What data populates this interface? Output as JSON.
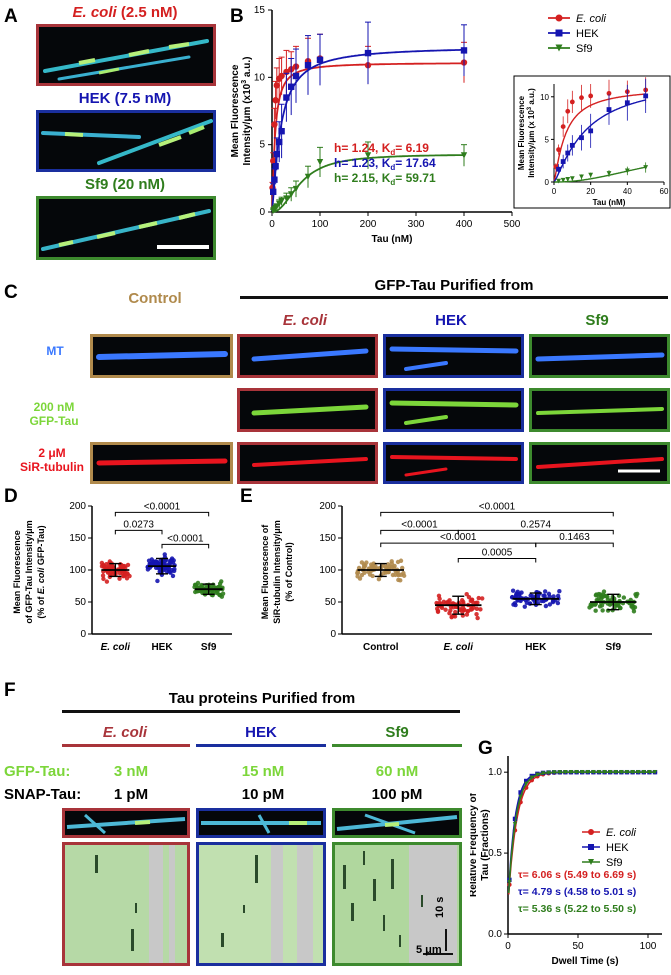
{
  "panel_labels": {
    "a": "A",
    "b": "B",
    "c": "C",
    "d": "D",
    "e": "E",
    "f": "F",
    "g": "G"
  },
  "colors": {
    "ecoli": "#d42020",
    "hek": "#1515b0",
    "sf9": "#2f7d1d",
    "control": "#b08a4c",
    "mt_blue": "#3a78ff",
    "gfp_green": "#7cd63a",
    "sir_red": "#e8141e"
  },
  "panel_a": {
    "ecoli_title": "E. coli",
    "ecoli_conc": " (2.5 nM)",
    "hek_title": "HEK (7.5 nM)",
    "sf9_title": "Sf9 (20 nM)"
  },
  "panel_c": {
    "control_label": "Control",
    "header": "GFP-Tau Purified from",
    "col_ecoli": "E. coli",
    "col_hek": "HEK",
    "col_sf9": "Sf9",
    "row_mt": "MT",
    "row_gfp_1": "200 nM",
    "row_gfp_2": "GFP-Tau",
    "row_sir_1": "2 μM",
    "row_sir_2": "SiR-tubulin"
  },
  "panel_f": {
    "header": "Tau proteins Purified from",
    "col_ecoli": "E. coli",
    "col_hek": "HEK",
    "col_sf9": "Sf9",
    "gfp_label": "GFP-Tau:",
    "gfp_ecoli": "3 nM",
    "gfp_hek": "15 nM",
    "gfp_sf9": "60 nM",
    "snap_label": "SNAP-Tau:",
    "snap_ecoli": "1 pM",
    "snap_hek": "10 pM",
    "snap_sf9": "100 pM",
    "scale_time": "10 s",
    "scale_space": "5 μm"
  },
  "chart_data": [
    {
      "id": "B",
      "type": "scatter",
      "xlabel": "Tau (nM)",
      "ylabel_1": "Mean Fluorescence",
      "ylabel_2": "Intensity/μm (x10",
      "ylabel_sup": "3",
      "ylabel_3": " a.u.)",
      "xlim": [
        0,
        500
      ],
      "ylim": [
        0,
        15
      ],
      "xticks": [
        "0",
        "100",
        "200",
        "300",
        "400",
        "500"
      ],
      "yticks": [
        "0",
        "5",
        "10",
        "15"
      ],
      "legend": [
        "E. coli",
        "HEK",
        "Sf9"
      ],
      "annotations": [
        "h= 1.24, K",
        "h= 1.23, K",
        "h= 2.15, K"
      ],
      "kd_sub": "d",
      "kd_values": [
        "= 6.19",
        "= 17.64",
        "= 59.71"
      ],
      "series": [
        {
          "name": "E. coli",
          "fit": {
            "Bmax": 11.1,
            "Kd": 6.19,
            "h": 1.24
          },
          "x": [
            1,
            2.5,
            5,
            7.5,
            10,
            15,
            20,
            30,
            40,
            50,
            75,
            100,
            200,
            400
          ],
          "y": [
            1.8,
            3.8,
            6.5,
            8.3,
            9.4,
            9.9,
            10.1,
            10.4,
            10.6,
            10.8,
            11.2,
            11.4,
            10.9,
            11.1
          ],
          "err": [
            0.4,
            0.6,
            1.2,
            1.4,
            1.3,
            1.5,
            1.4,
            1.6,
            1.3,
            1.5,
            1.7,
            1.8,
            1.4,
            1.5
          ]
        },
        {
          "name": "HEK",
          "fit": {
            "Bmax": 12.3,
            "Kd": 17.64,
            "h": 1.23
          },
          "x": [
            2.5,
            5,
            7.5,
            10,
            15,
            20,
            30,
            40,
            50,
            75,
            100,
            200,
            400
          ],
          "y": [
            1.5,
            2.4,
            3.4,
            4.3,
            5.2,
            6.0,
            8.5,
            9.3,
            10.1,
            10.9,
            11.3,
            11.8,
            12.0
          ],
          "err": [
            0.6,
            0.8,
            1.0,
            1.2,
            1.5,
            2.0,
            1.8,
            2.1,
            2.0,
            2.2,
            1.9,
            2.3,
            1.9
          ]
        },
        {
          "name": "Sf9",
          "fit": {
            "Bmax": 4.3,
            "Kd": 59.71,
            "h": 2.15
          },
          "x": [
            2.5,
            5,
            7.5,
            10,
            15,
            20,
            30,
            40,
            50,
            75,
            100,
            200,
            400
          ],
          "y": [
            0.1,
            0.2,
            0.3,
            0.4,
            0.6,
            0.8,
            1.0,
            1.3,
            1.7,
            2.6,
            3.7,
            4.2,
            4.2
          ],
          "err": [
            0.1,
            0.1,
            0.2,
            0.2,
            0.3,
            0.3,
            0.4,
            0.5,
            0.6,
            0.8,
            1.1,
            1.0,
            0.8
          ]
        }
      ]
    },
    {
      "id": "B-inset",
      "type": "scatter",
      "xlabel": "Tau (nM)",
      "ylabel_1": "Mean Fluorescence",
      "ylabel_2": "Intensity/μm (x 10",
      "ylabel_sup": "3",
      "ylabel_3": " a.u.)",
      "xlim": [
        0,
        60
      ],
      "ylim": [
        0,
        11.5
      ],
      "xticks": [
        "0",
        "20",
        "40",
        "60"
      ],
      "yticks": [
        "0",
        "5",
        "10"
      ]
    },
    {
      "id": "D",
      "type": "scatter",
      "categories": [
        "E. coli",
        "HEK",
        "Sf9"
      ],
      "ylabel_1": "Mean Fluorescence",
      "ylabel_2": "of GFP-Tau Intensity/μm",
      "ylabel_3": "(% of ",
      "ylabel_3b": "E. coli",
      "ylabel_3c": " GFP-Tau)",
      "ylim": [
        0,
        200
      ],
      "yticks": [
        "0",
        "50",
        "100",
        "150",
        "200"
      ],
      "means": [
        100,
        106,
        70
      ],
      "sd": [
        10,
        12,
        8
      ],
      "pvalues": [
        "<0.0001",
        "0.0273",
        "<0.0001"
      ]
    },
    {
      "id": "E",
      "type": "scatter",
      "categories": [
        "Control",
        "E. coli",
        "HEK",
        "Sf9"
      ],
      "ylabel_1": "Mean Fluorescence of",
      "ylabel_2": "SiR-tubulin Intensity/μm",
      "ylabel_3": "(% of Control)",
      "ylim": [
        0,
        200
      ],
      "yticks": [
        "0",
        "50",
        "100",
        "150",
        "200"
      ],
      "means": [
        100,
        45,
        55,
        50
      ],
      "sd": [
        10,
        14,
        9,
        12
      ],
      "pvalues": [
        "<0.0001",
        "<0.0001",
        "0.2574",
        "<0.0001",
        "0.1463",
        "0.0005"
      ]
    },
    {
      "id": "G",
      "type": "line",
      "xlabel": "Dwell Time (s)",
      "ylabel_1": "Relative Frequency of",
      "ylabel_2": "Tau (Fractions)",
      "xlim": [
        0,
        110
      ],
      "ylim": [
        0,
        1.1
      ],
      "xticks": [
        "0",
        "50",
        "100"
      ],
      "yticks": [
        "0.0",
        "0.5",
        "1.0"
      ],
      "legend": [
        "E. coli",
        "HEK",
        "Sf9"
      ],
      "annotations": [
        "τ= 6.06 s (5.49 to 6.69 s)",
        "τ= 4.79 s (4.58 to 5.01 s)",
        "τ= 5.36 s (5.22 to 5.50 s)"
      ],
      "series": [
        {
          "name": "E. coli",
          "tau": 6.06
        },
        {
          "name": "HEK",
          "tau": 4.79
        },
        {
          "name": "Sf9",
          "tau": 5.36
        }
      ]
    }
  ]
}
